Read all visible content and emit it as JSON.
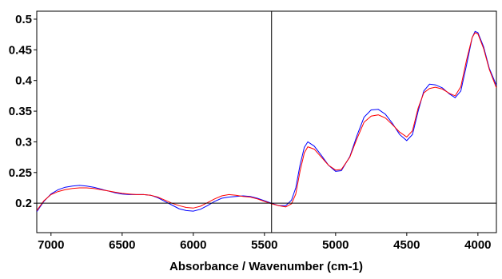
{
  "chart_data": {
    "type": "line",
    "title": "",
    "xlabel": "Absorbance / Wavenumber (cm-1)",
    "ylabel": "",
    "x_reversed": true,
    "xlim": [
      7100,
      3870
    ],
    "ylim": [
      0.152,
      0.513
    ],
    "x_ticks": [
      7000,
      6500,
      6000,
      5500,
      5000,
      4500,
      4000
    ],
    "y_ticks": [
      0.2,
      0.25,
      0.3,
      0.35,
      0.4,
      0.45,
      0.5
    ],
    "x_tick_labels": [
      "7000",
      "6500",
      "6000",
      "5500",
      "5000",
      "4500",
      "4000"
    ],
    "y_tick_labels": [
      "0.2",
      "0.25",
      "0.3",
      "0.35",
      "0.4",
      "0.45",
      "0.5"
    ],
    "cursor": {
      "x": 5450,
      "y": 0.2
    },
    "grid": false,
    "legend": "none",
    "series": [
      {
        "color": "#0000ff",
        "points": [
          [
            7100,
            0.186
          ],
          [
            7050,
            0.203
          ],
          [
            7000,
            0.215
          ],
          [
            6950,
            0.222
          ],
          [
            6900,
            0.226
          ],
          [
            6850,
            0.228
          ],
          [
            6800,
            0.229
          ],
          [
            6750,
            0.228
          ],
          [
            6700,
            0.226
          ],
          [
            6650,
            0.223
          ],
          [
            6600,
            0.22
          ],
          [
            6550,
            0.217
          ],
          [
            6500,
            0.215
          ],
          [
            6450,
            0.214
          ],
          [
            6400,
            0.214
          ],
          [
            6350,
            0.214
          ],
          [
            6300,
            0.213
          ],
          [
            6250,
            0.209
          ],
          [
            6200,
            0.203
          ],
          [
            6150,
            0.197
          ],
          [
            6100,
            0.191
          ],
          [
            6050,
            0.188
          ],
          [
            6000,
            0.187
          ],
          [
            5950,
            0.19
          ],
          [
            5900,
            0.196
          ],
          [
            5850,
            0.203
          ],
          [
            5800,
            0.208
          ],
          [
            5750,
            0.21
          ],
          [
            5700,
            0.211
          ],
          [
            5650,
            0.212
          ],
          [
            5600,
            0.211
          ],
          [
            5550,
            0.208
          ],
          [
            5500,
            0.204
          ],
          [
            5450,
            0.2
          ],
          [
            5400,
            0.196
          ],
          [
            5350,
            0.196
          ],
          [
            5310,
            0.205
          ],
          [
            5280,
            0.225
          ],
          [
            5250,
            0.262
          ],
          [
            5220,
            0.291
          ],
          [
            5195,
            0.3
          ],
          [
            5150,
            0.293
          ],
          [
            5100,
            0.278
          ],
          [
            5050,
            0.262
          ],
          [
            5000,
            0.252
          ],
          [
            4960,
            0.253
          ],
          [
            4900,
            0.276
          ],
          [
            4850,
            0.31
          ],
          [
            4800,
            0.34
          ],
          [
            4750,
            0.352
          ],
          [
            4700,
            0.353
          ],
          [
            4650,
            0.345
          ],
          [
            4600,
            0.33
          ],
          [
            4550,
            0.312
          ],
          [
            4500,
            0.302
          ],
          [
            4460,
            0.312
          ],
          [
            4420,
            0.35
          ],
          [
            4380,
            0.383
          ],
          [
            4340,
            0.394
          ],
          [
            4300,
            0.393
          ],
          [
            4250,
            0.388
          ],
          [
            4200,
            0.378
          ],
          [
            4160,
            0.372
          ],
          [
            4120,
            0.383
          ],
          [
            4080,
            0.425
          ],
          [
            4040,
            0.47
          ],
          [
            4020,
            0.48
          ],
          [
            4000,
            0.478
          ],
          [
            3960,
            0.455
          ],
          [
            3920,
            0.42
          ],
          [
            3870,
            0.392
          ]
        ]
      },
      {
        "color": "#ff0000",
        "points": [
          [
            7100,
            0.188
          ],
          [
            7050,
            0.204
          ],
          [
            7000,
            0.214
          ],
          [
            6950,
            0.219
          ],
          [
            6900,
            0.222
          ],
          [
            6850,
            0.224
          ],
          [
            6800,
            0.225
          ],
          [
            6750,
            0.225
          ],
          [
            6700,
            0.224
          ],
          [
            6650,
            0.222
          ],
          [
            6600,
            0.22
          ],
          [
            6550,
            0.218
          ],
          [
            6500,
            0.216
          ],
          [
            6450,
            0.215
          ],
          [
            6400,
            0.214
          ],
          [
            6350,
            0.214
          ],
          [
            6300,
            0.213
          ],
          [
            6250,
            0.21
          ],
          [
            6200,
            0.205
          ],
          [
            6150,
            0.2
          ],
          [
            6100,
            0.196
          ],
          [
            6050,
            0.193
          ],
          [
            6000,
            0.192
          ],
          [
            5950,
            0.195
          ],
          [
            5900,
            0.201
          ],
          [
            5850,
            0.207
          ],
          [
            5800,
            0.212
          ],
          [
            5750,
            0.214
          ],
          [
            5700,
            0.213
          ],
          [
            5650,
            0.211
          ],
          [
            5600,
            0.21
          ],
          [
            5550,
            0.207
          ],
          [
            5500,
            0.203
          ],
          [
            5450,
            0.199
          ],
          [
            5400,
            0.196
          ],
          [
            5350,
            0.194
          ],
          [
            5310,
            0.199
          ],
          [
            5280,
            0.215
          ],
          [
            5250,
            0.252
          ],
          [
            5220,
            0.282
          ],
          [
            5195,
            0.292
          ],
          [
            5150,
            0.288
          ],
          [
            5100,
            0.275
          ],
          [
            5050,
            0.262
          ],
          [
            5000,
            0.254
          ],
          [
            4960,
            0.255
          ],
          [
            4900,
            0.275
          ],
          [
            4850,
            0.305
          ],
          [
            4800,
            0.332
          ],
          [
            4750,
            0.342
          ],
          [
            4700,
            0.344
          ],
          [
            4650,
            0.339
          ],
          [
            4600,
            0.328
          ],
          [
            4550,
            0.316
          ],
          [
            4500,
            0.308
          ],
          [
            4460,
            0.318
          ],
          [
            4420,
            0.355
          ],
          [
            4380,
            0.38
          ],
          [
            4340,
            0.387
          ],
          [
            4300,
            0.389
          ],
          [
            4250,
            0.386
          ],
          [
            4200,
            0.379
          ],
          [
            4160,
            0.375
          ],
          [
            4120,
            0.39
          ],
          [
            4080,
            0.433
          ],
          [
            4040,
            0.47
          ],
          [
            4020,
            0.478
          ],
          [
            4000,
            0.476
          ],
          [
            3960,
            0.452
          ],
          [
            3920,
            0.418
          ],
          [
            3870,
            0.388
          ]
        ]
      }
    ]
  }
}
